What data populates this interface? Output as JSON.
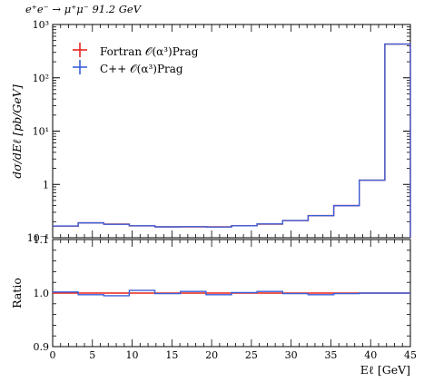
{
  "chart_data": [
    {
      "type": "line",
      "title": "e⁺e⁻ → μ⁺μ⁻ 91.2 GeV",
      "ylabel": "dσ/dEℓ [pb/GeV]",
      "yscale": "log",
      "xlim": [
        0,
        45
      ],
      "ylim": [
        0.1,
        1000
      ],
      "y_ticks": [
        {
          "value": 1000,
          "label": "10³"
        },
        {
          "value": 100,
          "label": "10²"
        },
        {
          "value": 10,
          "label": "10¹"
        },
        {
          "value": 1,
          "label": "1"
        },
        {
          "value": 0.1,
          "label": "10⁻¹"
        }
      ],
      "legend_position": "top-left",
      "bin_edges": [
        0,
        3.21,
        6.43,
        9.64,
        12.86,
        16.07,
        19.29,
        22.5,
        25.71,
        28.93,
        32.14,
        35.36,
        38.57,
        41.79,
        45
      ],
      "series": [
        {
          "name": "Fortran 𝒪(α³)Prag",
          "color": "#e8241c",
          "values": [
            0.165,
            0.19,
            0.18,
            0.167,
            0.16,
            0.16,
            0.16,
            0.168,
            0.18,
            0.21,
            0.26,
            0.4,
            1.2,
            430
          ]
        },
        {
          "name": "C++ 𝒪(α³)Prag",
          "color": "#3a5fd9",
          "values": [
            0.166,
            0.19,
            0.179,
            0.168,
            0.16,
            0.161,
            0.159,
            0.168,
            0.181,
            0.21,
            0.259,
            0.4,
            1.2,
            430
          ]
        }
      ]
    },
    {
      "type": "line",
      "ylabel": "Ratio",
      "xlabel": "Eℓ [GeV]",
      "xlim": [
        0,
        45
      ],
      "ylim": [
        0.9,
        1.1
      ],
      "x_ticks": [
        0,
        5,
        10,
        15,
        20,
        25,
        30,
        35,
        40,
        45
      ],
      "y_ticks": [
        {
          "value": 1.1,
          "label": "1.1"
        },
        {
          "value": 1.0,
          "label": "1.0"
        },
        {
          "value": 0.9,
          "label": "0.9"
        }
      ],
      "bin_edges": [
        0,
        3.21,
        6.43,
        9.64,
        12.86,
        16.07,
        19.29,
        22.5,
        25.71,
        28.93,
        32.14,
        35.36,
        38.57,
        41.79,
        45
      ],
      "series": [
        {
          "name": "Fortran",
          "color": "#e8241c",
          "values": [
            1,
            1,
            1,
            1,
            1,
            1,
            1,
            1,
            1,
            1,
            1,
            1,
            1,
            1
          ]
        },
        {
          "name": "C++",
          "color": "#3a5fd9",
          "values": [
            1.002,
            0.997,
            0.995,
            1.005,
            0.999,
            1.003,
            0.997,
            1.001,
            1.003,
            0.999,
            0.997,
            0.999,
            1.0,
            1.0
          ]
        }
      ]
    }
  ]
}
